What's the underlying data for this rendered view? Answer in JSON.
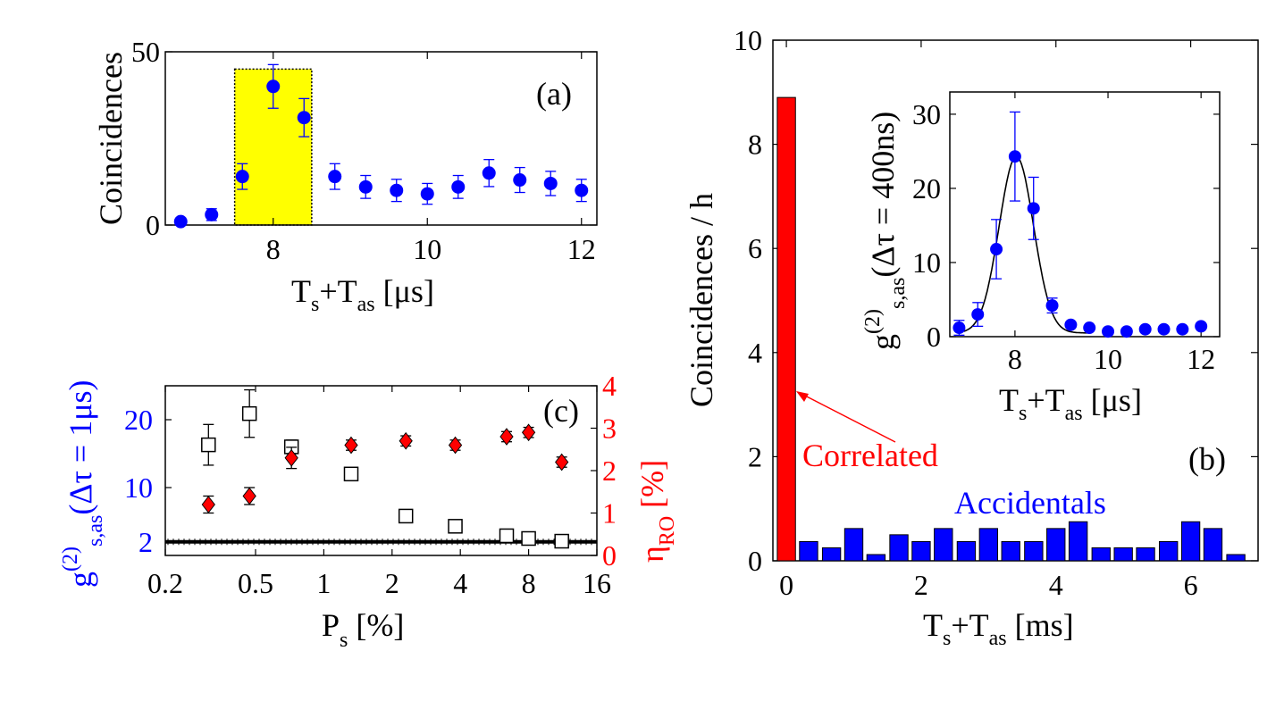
{
  "colors": {
    "blue": "#0000ff",
    "red": "#ff0000",
    "yellow": "#ffff00",
    "black": "#000000"
  },
  "chart_data": [
    {
      "id": "a",
      "type": "scatter",
      "panel_label": "(a)",
      "ylabel": "Coincidences",
      "xlabel": {
        "main": "T",
        "s": "s",
        "plus": "+T",
        "as": "as",
        "unit": " [μs]"
      },
      "xlim": [
        6.6,
        12.2
      ],
      "ylim": [
        0,
        50
      ],
      "xticks": [
        8,
        10,
        12
      ],
      "yticks": [
        0,
        50
      ],
      "highlight_x": [
        7.5,
        8.5
      ],
      "x": [
        6.8,
        7.2,
        7.6,
        8.0,
        8.4,
        8.8,
        9.2,
        9.6,
        10.0,
        10.4,
        10.8,
        11.2,
        11.6,
        12.0
      ],
      "y": [
        1,
        3,
        14,
        40,
        31,
        14,
        11,
        10,
        9,
        11,
        15,
        13,
        12,
        10
      ],
      "yerr": [
        1,
        1.7,
        3.7,
        6.3,
        5.5,
        3.7,
        3.3,
        3.2,
        3,
        3.3,
        3.9,
        3.6,
        3.5,
        3.2
      ]
    },
    {
      "id": "b",
      "type": "bar",
      "panel_label": "(b)",
      "ylabel": "Coincidences / h",
      "xlabel": {
        "main": "T",
        "s": "s",
        "plus": "+T",
        "as": "as",
        "unit": " [ms]"
      },
      "xlim": [
        -0.2,
        7.0
      ],
      "ylim": [
        0,
        10
      ],
      "xticks": [
        0,
        2,
        4,
        6
      ],
      "yticks": [
        0,
        2,
        4,
        6,
        8,
        10
      ],
      "bar_width": 0.27,
      "correlated": {
        "x": 0,
        "value": 8.9,
        "label": "Correlated"
      },
      "accidentals": {
        "label": "Accidentals",
        "x": [
          0.33,
          0.67,
          1.0,
          1.33,
          1.67,
          2.0,
          2.33,
          2.67,
          3.0,
          3.33,
          3.67,
          4.0,
          4.33,
          4.67,
          5.0,
          5.33,
          5.67,
          6.0,
          6.33,
          6.67
        ],
        "values": [
          0.37,
          0.25,
          0.62,
          0.12,
          0.5,
          0.37,
          0.62,
          0.37,
          0.62,
          0.37,
          0.37,
          0.62,
          0.75,
          0.25,
          0.25,
          0.25,
          0.37,
          0.75,
          0.62,
          0.12
        ]
      }
    },
    {
      "id": "b-inset",
      "type": "scatter",
      "ylabel": {
        "g": "g",
        "sup": "(2)",
        "sub": "s,as",
        "rest": "(Δτ = 400ns)"
      },
      "xlabel": {
        "main": "T",
        "s": "s",
        "plus": "+T",
        "as": "as",
        "unit": " [μs]"
      },
      "xlim": [
        6.6,
        12.4
      ],
      "ylim": [
        0,
        33
      ],
      "xticks": [
        8,
        10,
        12
      ],
      "yticks": [
        0,
        10,
        20,
        30
      ],
      "x": [
        6.8,
        7.2,
        7.6,
        8.0,
        8.4,
        8.8,
        9.2,
        9.6,
        10.0,
        10.4,
        10.8,
        11.2,
        11.6,
        12.0
      ],
      "y": [
        1.2,
        3,
        11.8,
        24.3,
        17.3,
        4.2,
        1.6,
        1.2,
        0.7,
        0.7,
        1.0,
        1.0,
        1.0,
        1.4
      ],
      "yerr": [
        1.0,
        1.6,
        4.0,
        6.0,
        4.2,
        1.0,
        0.4,
        0.3,
        0.2,
        0.2,
        0.3,
        0.3,
        0.3,
        0.3
      ],
      "fit": {
        "type": "gaussian",
        "amplitude": 24.3,
        "center": 8.03,
        "sigma": 0.37,
        "offset": 0.5
      }
    },
    {
      "id": "c",
      "type": "scatter",
      "panel_label": "(c)",
      "xscale": "log",
      "xlabel": {
        "main": "P",
        "s": "s",
        "unit": " [%]"
      },
      "xlim": [
        0.2,
        16
      ],
      "xticks": [
        0.2,
        0.5,
        1,
        2,
        4,
        8,
        16
      ],
      "xticklabels": [
        "0.2",
        "0.5",
        "1",
        "2",
        "4",
        "8",
        "16"
      ],
      "left": {
        "ylabel": {
          "g": "g",
          "sup": "(2)",
          "sub": "s,as",
          "rest": "(Δτ = 1μs)"
        },
        "ylim": [
          0,
          25
        ],
        "yticks": [
          2,
          10,
          20
        ],
        "reference_line": 2,
        "x": [
          0.31,
          0.47,
          0.72,
          1.32,
          2.3,
          3.8,
          6.4,
          8.0,
          11.2
        ],
        "y": [
          16.3,
          20.9,
          16.0,
          12.0,
          5.8,
          4.3,
          2.9,
          2.5,
          2.1
        ],
        "yerr": [
          3.0,
          3.5,
          1.0,
          0,
          0,
          0,
          0,
          0,
          0
        ]
      },
      "right": {
        "ylabel": {
          "main": "η",
          "sub": "RO",
          "unit": " [%]"
        },
        "ylim": [
          0,
          4
        ],
        "yticks": [
          0,
          1,
          2,
          3,
          4
        ],
        "x": [
          0.31,
          0.47,
          0.72,
          1.32,
          2.3,
          3.8,
          6.4,
          8.0,
          11.2
        ],
        "y": [
          1.2,
          1.4,
          2.3,
          2.6,
          2.7,
          2.6,
          2.8,
          2.9,
          2.2
        ],
        "yerr": [
          0.2,
          0.2,
          0.25,
          0.12,
          0.12,
          0.12,
          0.12,
          0.12,
          0.12
        ]
      }
    }
  ]
}
